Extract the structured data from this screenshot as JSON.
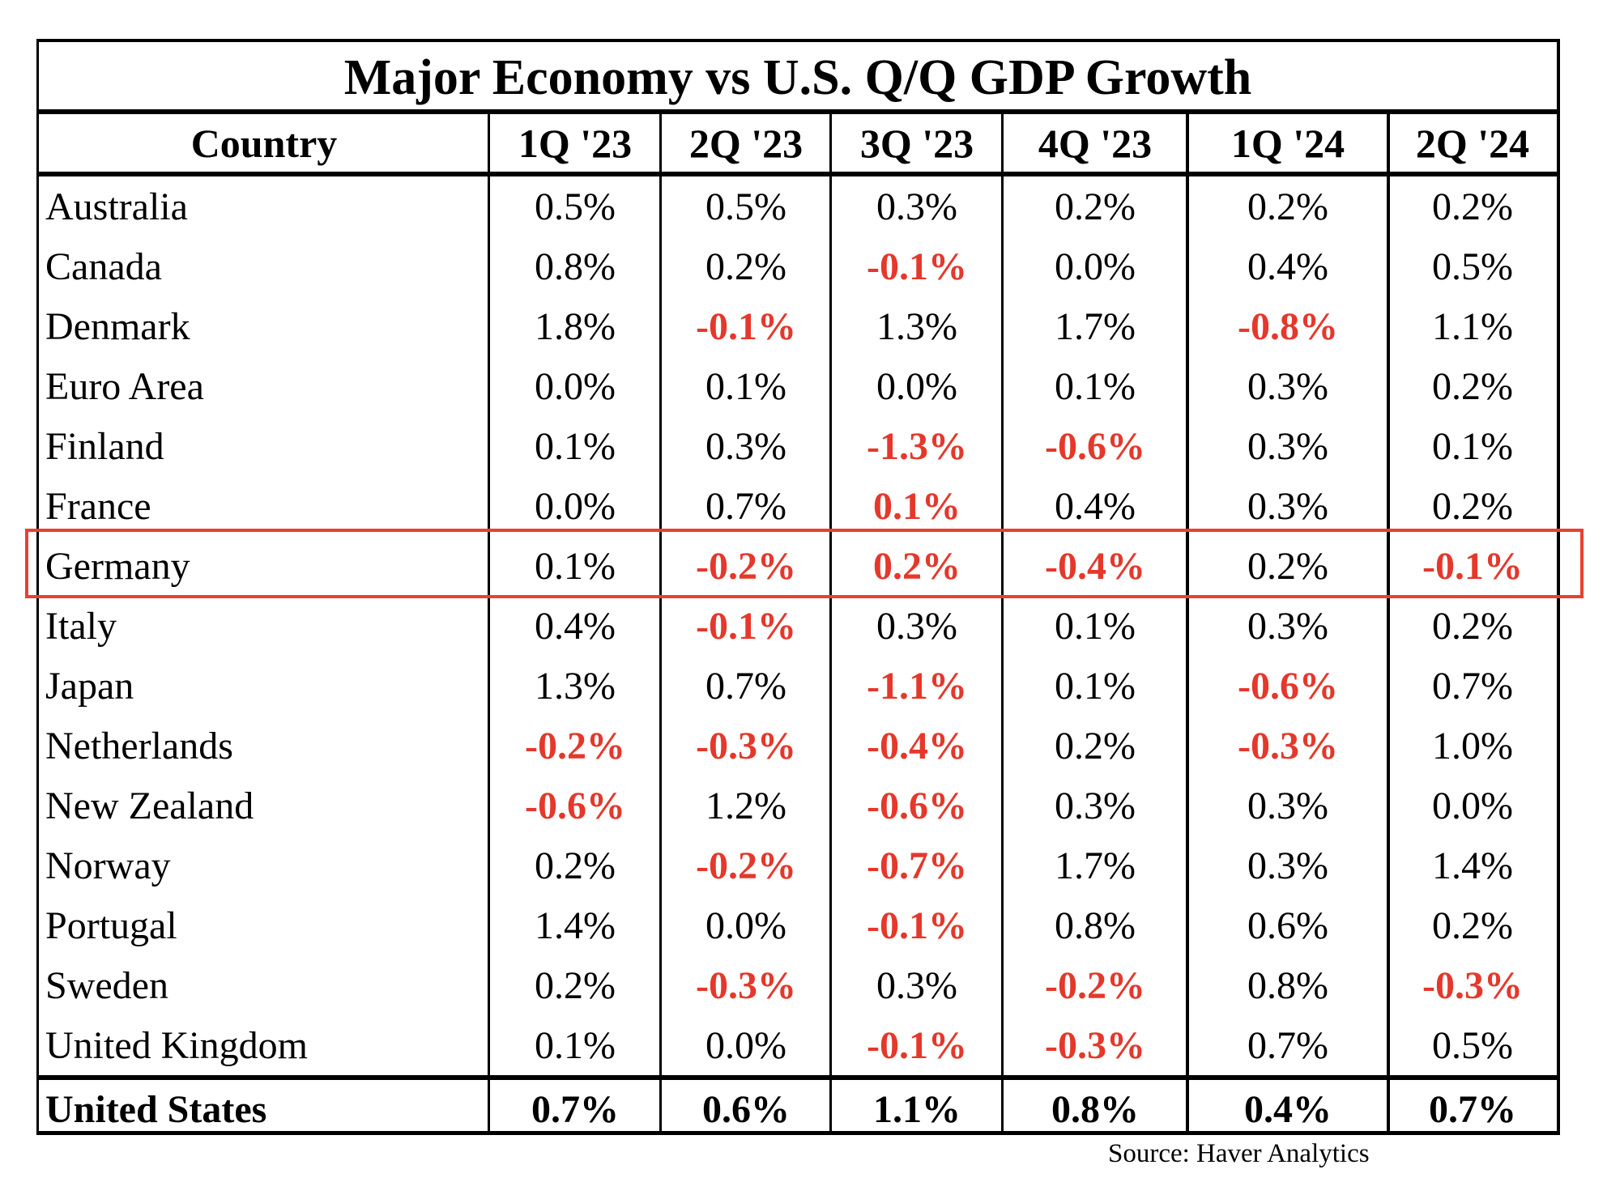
{
  "title": "Major Economy vs U.S. Q/Q GDP Growth",
  "columns": [
    "Country",
    "1Q '23",
    "2Q '23",
    "3Q '23",
    "4Q '23",
    "1Q '24",
    "2Q '24"
  ],
  "colors": {
    "negative_text": "#e5382b",
    "highlight_border": "#e8412f",
    "default_text": "#000000"
  },
  "highlighted_row": "Germany",
  "rows": [
    {
      "country": "Australia",
      "values": [
        "0.5%",
        "0.5%",
        "0.3%",
        "0.2%",
        "0.2%",
        "0.2%"
      ],
      "red": [
        false,
        false,
        false,
        false,
        false,
        false
      ]
    },
    {
      "country": "Canada",
      "values": [
        "0.8%",
        "0.2%",
        "-0.1%",
        "0.0%",
        "0.4%",
        "0.5%"
      ],
      "red": [
        false,
        false,
        true,
        false,
        false,
        false
      ]
    },
    {
      "country": "Denmark",
      "values": [
        "1.8%",
        "-0.1%",
        "1.3%",
        "1.7%",
        "-0.8%",
        "1.1%"
      ],
      "red": [
        false,
        true,
        false,
        false,
        true,
        false
      ]
    },
    {
      "country": "Euro Area",
      "values": [
        "0.0%",
        "0.1%",
        "0.0%",
        "0.1%",
        "0.3%",
        "0.2%"
      ],
      "red": [
        false,
        false,
        false,
        false,
        false,
        false
      ]
    },
    {
      "country": "Finland",
      "values": [
        "0.1%",
        "0.3%",
        "-1.3%",
        "-0.6%",
        "0.3%",
        "0.1%"
      ],
      "red": [
        false,
        false,
        true,
        true,
        false,
        false
      ]
    },
    {
      "country": "France",
      "values": [
        "0.0%",
        "0.7%",
        "0.1%",
        "0.4%",
        "0.3%",
        "0.2%"
      ],
      "red": [
        false,
        false,
        true,
        false,
        false,
        false
      ]
    },
    {
      "country": "Germany",
      "values": [
        "0.1%",
        "-0.2%",
        "0.2%",
        "-0.4%",
        "0.2%",
        "-0.1%"
      ],
      "red": [
        false,
        true,
        true,
        true,
        false,
        true
      ]
    },
    {
      "country": "Italy",
      "values": [
        "0.4%",
        "-0.1%",
        "0.3%",
        "0.1%",
        "0.3%",
        "0.2%"
      ],
      "red": [
        false,
        true,
        false,
        false,
        false,
        false
      ]
    },
    {
      "country": "Japan",
      "values": [
        "1.3%",
        "0.7%",
        "-1.1%",
        "0.1%",
        "-0.6%",
        "0.7%"
      ],
      "red": [
        false,
        false,
        true,
        false,
        true,
        false
      ]
    },
    {
      "country": "Netherlands",
      "values": [
        "-0.2%",
        "-0.3%",
        "-0.4%",
        "0.2%",
        "-0.3%",
        "1.0%"
      ],
      "red": [
        true,
        true,
        true,
        false,
        true,
        false
      ]
    },
    {
      "country": "New Zealand",
      "values": [
        "-0.6%",
        "1.2%",
        "-0.6%",
        "0.3%",
        "0.3%",
        "0.0%"
      ],
      "red": [
        true,
        false,
        true,
        false,
        false,
        false
      ]
    },
    {
      "country": "Norway",
      "values": [
        "0.2%",
        "-0.2%",
        "-0.7%",
        "1.7%",
        "0.3%",
        "1.4%"
      ],
      "red": [
        false,
        true,
        true,
        false,
        false,
        false
      ]
    },
    {
      "country": "Portugal",
      "values": [
        "1.4%",
        "0.0%",
        "-0.1%",
        "0.8%",
        "0.6%",
        "0.2%"
      ],
      "red": [
        false,
        false,
        true,
        false,
        false,
        false
      ]
    },
    {
      "country": "Sweden",
      "values": [
        "0.2%",
        "-0.3%",
        "0.3%",
        "-0.2%",
        "0.8%",
        "-0.3%"
      ],
      "red": [
        false,
        true,
        false,
        true,
        false,
        true
      ]
    },
    {
      "country": "United Kingdom",
      "values": [
        "0.1%",
        "0.0%",
        "-0.1%",
        "-0.3%",
        "0.7%",
        "0.5%"
      ],
      "red": [
        false,
        false,
        true,
        true,
        false,
        false
      ]
    }
  ],
  "total_row": {
    "country": "United States",
    "values": [
      "0.7%",
      "0.6%",
      "1.1%",
      "0.8%",
      "0.4%",
      "0.7%"
    ]
  },
  "source": "Source: Haver Analytics"
}
